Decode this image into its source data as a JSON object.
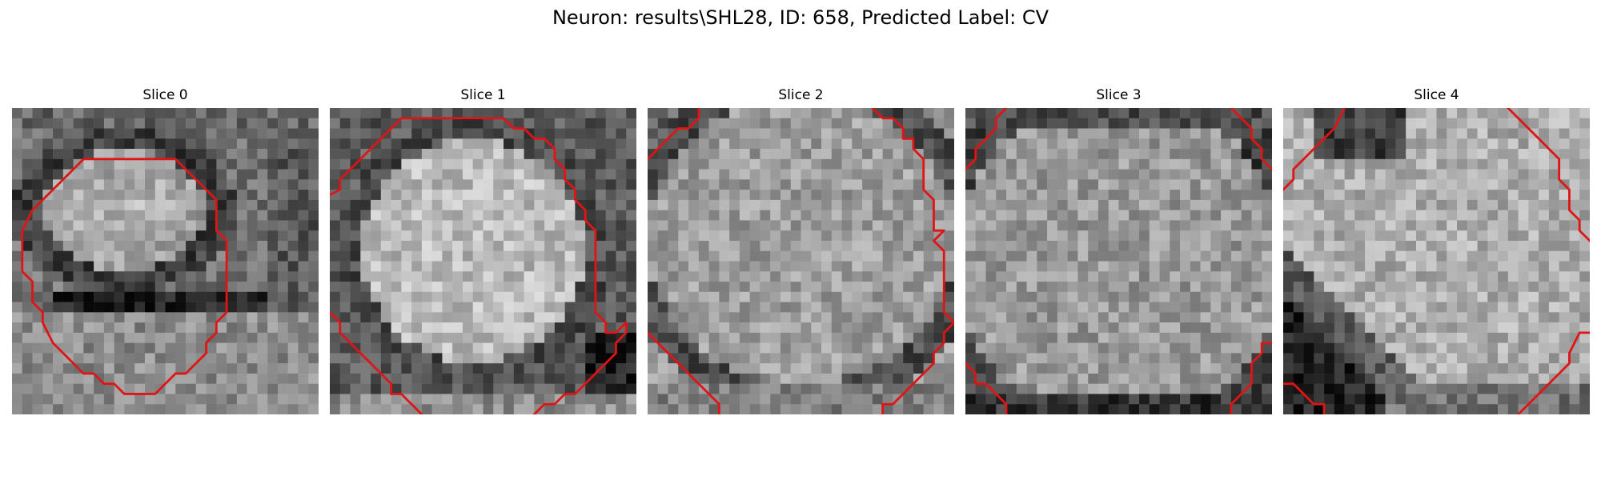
{
  "figure": {
    "title": "Neuron: results\\SHL28, ID: 658, Predicted Label: CV"
  },
  "panels": [
    {
      "title": "Slice 0"
    },
    {
      "title": "Slice 1"
    },
    {
      "title": "Slice 2"
    },
    {
      "title": "Slice 3"
    },
    {
      "title": "Slice 4"
    }
  ],
  "colors": {
    "background": "#ffffff",
    "contour": "#e01414",
    "colormap": "grayscale"
  }
}
